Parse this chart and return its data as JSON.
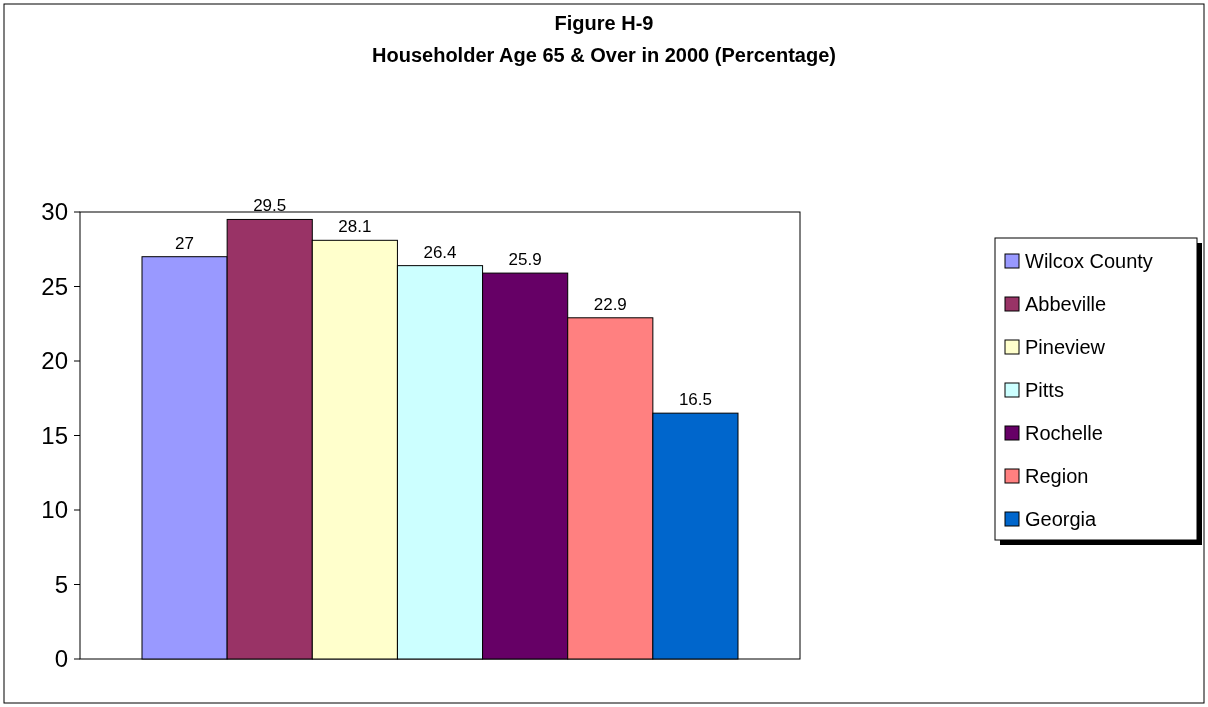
{
  "chart_data": {
    "type": "bar",
    "title": "Figure H-9",
    "subtitle": "Householder Age 65 & Over in 2000 (Percentage)",
    "categories": [
      null
    ],
    "series": [
      {
        "name": "Wilcox County",
        "color": "#9999ff",
        "values": [
          27
        ]
      },
      {
        "name": "Abbeville",
        "color": "#993366",
        "values": [
          29.5
        ]
      },
      {
        "name": "Pineview",
        "color": "#ffffcc",
        "values": [
          28.1
        ]
      },
      {
        "name": "Pitts",
        "color": "#ccffff",
        "values": [
          26.4
        ]
      },
      {
        "name": "Rochelle",
        "color": "#660066",
        "values": [
          25.9
        ]
      },
      {
        "name": "Region",
        "color": "#ff8080",
        "values": [
          22.9
        ]
      },
      {
        "name": "Georgia",
        "color": "#0066cc",
        "values": [
          16.5
        ]
      }
    ],
    "ylim": [
      0,
      30
    ],
    "yticks": [
      0,
      5,
      10,
      15,
      20,
      25,
      30
    ],
    "data_labels": true,
    "legend": "right",
    "grid": false
  }
}
